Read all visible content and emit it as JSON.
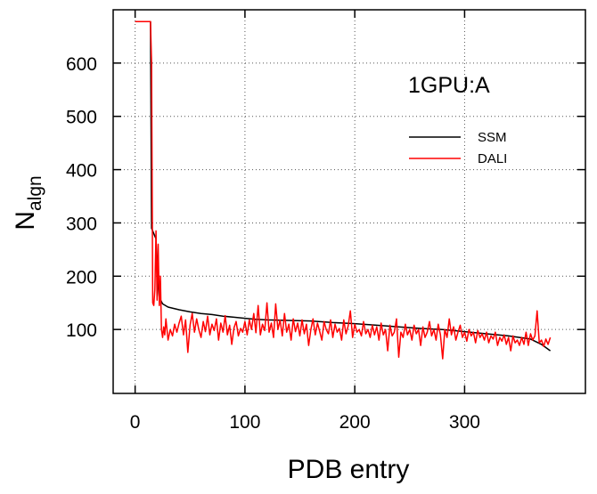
{
  "chart_data": {
    "type": "line",
    "title": "",
    "annotation": "1GPU:A",
    "xlabel": "PDB entry",
    "ylabel_main": "N",
    "ylabel_sub": "algn",
    "xlim": [
      -20,
      410
    ],
    "ylim": [
      -20,
      700
    ],
    "xticks": [
      0,
      100,
      200,
      300
    ],
    "yticks": [
      100,
      200,
      300,
      400,
      500,
      600
    ],
    "grid": true,
    "legend_position": "top-right",
    "series": [
      {
        "name": "SSM",
        "color": "#000000",
        "points": [
          [
            0,
            678
          ],
          [
            14,
            678
          ],
          [
            15,
            290
          ],
          [
            17,
            280
          ],
          [
            19,
            270
          ],
          [
            20,
            200
          ],
          [
            22,
            160
          ],
          [
            25,
            148
          ],
          [
            30,
            142
          ],
          [
            40,
            137
          ],
          [
            50,
            133
          ],
          [
            60,
            130
          ],
          [
            70,
            128
          ],
          [
            80,
            125
          ],
          [
            90,
            123
          ],
          [
            100,
            121
          ],
          [
            110,
            119
          ],
          [
            120,
            118
          ],
          [
            140,
            117
          ],
          [
            160,
            116
          ],
          [
            180,
            113
          ],
          [
            200,
            111
          ],
          [
            220,
            108
          ],
          [
            240,
            105
          ],
          [
            260,
            102
          ],
          [
            280,
            100
          ],
          [
            300,
            96
          ],
          [
            320,
            92
          ],
          [
            340,
            88
          ],
          [
            360,
            82
          ],
          [
            370,
            72
          ],
          [
            378,
            60
          ]
        ]
      },
      {
        "name": "DALI",
        "color": "#ff0000",
        "points": [
          [
            0,
            678
          ],
          [
            14,
            678
          ],
          [
            15,
            600
          ],
          [
            16,
            150
          ],
          [
            17,
            145
          ],
          [
            18,
            175
          ],
          [
            19,
            285
          ],
          [
            20,
            155
          ],
          [
            21,
            260
          ],
          [
            22,
            145
          ],
          [
            23,
            200
          ],
          [
            24,
            100
          ],
          [
            25,
            85
          ],
          [
            26,
            105
          ],
          [
            27,
            90
          ],
          [
            28,
            120
          ],
          [
            30,
            80
          ],
          [
            32,
            100
          ],
          [
            34,
            88
          ],
          [
            36,
            110
          ],
          [
            38,
            95
          ],
          [
            40,
            112
          ],
          [
            42,
            125
          ],
          [
            44,
            90
          ],
          [
            46,
            118
          ],
          [
            48,
            57
          ],
          [
            50,
            108
          ],
          [
            52,
            130
          ],
          [
            54,
            95
          ],
          [
            56,
            120
          ],
          [
            58,
            100
          ],
          [
            60,
            85
          ],
          [
            62,
            115
          ],
          [
            64,
            96
          ],
          [
            66,
            125
          ],
          [
            68,
            90
          ],
          [
            70,
            110
          ],
          [
            72,
            98
          ],
          [
            74,
            120
          ],
          [
            76,
            80
          ],
          [
            78,
            112
          ],
          [
            80,
            95
          ],
          [
            82,
            126
          ],
          [
            84,
            90
          ],
          [
            86,
            108
          ],
          [
            88,
            72
          ],
          [
            90,
            103
          ],
          [
            92,
            115
          ],
          [
            94,
            88
          ],
          [
            96,
            102
          ],
          [
            98,
            95
          ],
          [
            100,
            115
          ],
          [
            102,
            90
          ],
          [
            104,
            118
          ],
          [
            106,
            100
          ],
          [
            108,
            130
          ],
          [
            110,
            94
          ],
          [
            112,
            145
          ],
          [
            114,
            90
          ],
          [
            116,
            110
          ],
          [
            118,
            98
          ],
          [
            120,
            150
          ],
          [
            122,
            95
          ],
          [
            124,
            112
          ],
          [
            126,
            85
          ],
          [
            128,
            148
          ],
          [
            130,
            100
          ],
          [
            132,
            118
          ],
          [
            134,
            88
          ],
          [
            136,
            130
          ],
          [
            138,
            95
          ],
          [
            140,
            110
          ],
          [
            142,
            80
          ],
          [
            144,
            120
          ],
          [
            146,
            96
          ],
          [
            148,
            112
          ],
          [
            150,
            88
          ],
          [
            152,
            118
          ],
          [
            154,
            92
          ],
          [
            156,
            110
          ],
          [
            158,
            70
          ],
          [
            160,
            100
          ],
          [
            162,
            120
          ],
          [
            164,
            90
          ],
          [
            166,
            112
          ],
          [
            168,
            97
          ],
          [
            170,
            80
          ],
          [
            172,
            115
          ],
          [
            174,
            100
          ],
          [
            176,
            92
          ],
          [
            178,
            118
          ],
          [
            180,
            85
          ],
          [
            182,
            110
          ],
          [
            184,
            95
          ],
          [
            186,
            102
          ],
          [
            188,
            80
          ],
          [
            190,
            118
          ],
          [
            192,
            92
          ],
          [
            194,
            107
          ],
          [
            196,
            135
          ],
          [
            198,
            85
          ],
          [
            200,
            110
          ],
          [
            202,
            95
          ],
          [
            204,
            100
          ],
          [
            206,
            88
          ],
          [
            208,
            115
          ],
          [
            210,
            92
          ],
          [
            212,
            100
          ],
          [
            214,
            85
          ],
          [
            216,
            108
          ],
          [
            218,
            90
          ],
          [
            220,
            105
          ],
          [
            222,
            80
          ],
          [
            224,
            112
          ],
          [
            226,
            90
          ],
          [
            228,
            100
          ],
          [
            230,
            60
          ],
          [
            232,
            108
          ],
          [
            234,
            88
          ],
          [
            236,
            95
          ],
          [
            238,
            120
          ],
          [
            240,
            48
          ],
          [
            242,
            95
          ],
          [
            244,
            85
          ],
          [
            246,
            110
          ],
          [
            248,
            90
          ],
          [
            250,
            100
          ],
          [
            252,
            80
          ],
          [
            254,
            108
          ],
          [
            256,
            92
          ],
          [
            258,
            100
          ],
          [
            260,
            70
          ],
          [
            262,
            105
          ],
          [
            264,
            85
          ],
          [
            266,
            95
          ],
          [
            268,
            115
          ],
          [
            270,
            88
          ],
          [
            272,
            100
          ],
          [
            274,
            80
          ],
          [
            276,
            110
          ],
          [
            278,
            90
          ],
          [
            280,
            45
          ],
          [
            282,
            100
          ],
          [
            284,
            85
          ],
          [
            286,
            120
          ],
          [
            288,
            90
          ],
          [
            290,
            105
          ],
          [
            292,
            80
          ],
          [
            294,
            95
          ],
          [
            296,
            108
          ],
          [
            298,
            85
          ],
          [
            300,
            95
          ],
          [
            302,
            78
          ],
          [
            304,
            100
          ],
          [
            306,
            88
          ],
          [
            308,
            95
          ],
          [
            310,
            75
          ],
          [
            312,
            98
          ],
          [
            314,
            85
          ],
          [
            316,
            92
          ],
          [
            318,
            80
          ],
          [
            320,
            95
          ],
          [
            322,
            75
          ],
          [
            324,
            88
          ],
          [
            326,
            82
          ],
          [
            328,
            95
          ],
          [
            330,
            70
          ],
          [
            332,
            85
          ],
          [
            334,
            78
          ],
          [
            336,
            90
          ],
          [
            338,
            72
          ],
          [
            340,
            85
          ],
          [
            342,
            60
          ],
          [
            344,
            88
          ],
          [
            346,
            75
          ],
          [
            348,
            80
          ],
          [
            350,
            70
          ],
          [
            352,
            85
          ],
          [
            354,
            72
          ],
          [
            356,
            95
          ],
          [
            358,
            70
          ],
          [
            360,
            92
          ],
          [
            362,
            80
          ],
          [
            364,
            88
          ],
          [
            366,
            135
          ],
          [
            368,
            75
          ],
          [
            370,
            80
          ],
          [
            372,
            68
          ],
          [
            374,
            82
          ],
          [
            376,
            72
          ],
          [
            378,
            85
          ]
        ]
      }
    ]
  }
}
